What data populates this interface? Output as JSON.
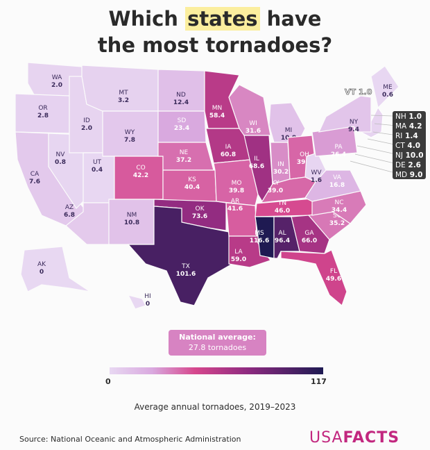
{
  "title": {
    "line1_pre": "Which ",
    "highlight": "states",
    "line1_post": " have",
    "line2": "the most tornadoes?"
  },
  "colors": {
    "scale": [
      "#e8d8f2",
      "#d9a9df",
      "#d6478d",
      "#8d2a80",
      "#1e1a52"
    ],
    "highlight": "#fbee9e",
    "callout_bg": "#3b3b3b",
    "average_box": "#d783c2",
    "logo": "#c2277f"
  },
  "chart_data": {
    "type": "choropleth",
    "title": "Which states have the most tornadoes?",
    "legend_title": "Average annual tornadoes, 2019–2023",
    "scale_range": [
      0,
      117
    ],
    "states": [
      {
        "code": "WA",
        "value": "2.0"
      },
      {
        "code": "OR",
        "value": "2.8"
      },
      {
        "code": "CA",
        "value": "7.6"
      },
      {
        "code": "NV",
        "value": "0.8"
      },
      {
        "code": "ID",
        "value": "2.0"
      },
      {
        "code": "MT",
        "value": "3.2"
      },
      {
        "code": "WY",
        "value": "7.8"
      },
      {
        "code": "UT",
        "value": "0.4"
      },
      {
        "code": "AZ",
        "value": "6.8"
      },
      {
        "code": "CO",
        "value": "42.2"
      },
      {
        "code": "NM",
        "value": "10.8"
      },
      {
        "code": "ND",
        "value": "12.4"
      },
      {
        "code": "SD",
        "value": "23.4"
      },
      {
        "code": "NE",
        "value": "37.2"
      },
      {
        "code": "KS",
        "value": "40.4"
      },
      {
        "code": "OK",
        "value": "73.6"
      },
      {
        "code": "TX",
        "value": "101.6"
      },
      {
        "code": "MN",
        "value": "58.4"
      },
      {
        "code": "IA",
        "value": "60.8"
      },
      {
        "code": "MO",
        "value": "39.8"
      },
      {
        "code": "AR",
        "value": "41.6"
      },
      {
        "code": "LA",
        "value": "59.0"
      },
      {
        "code": "WI",
        "value": "31.6"
      },
      {
        "code": "IL",
        "value": "68.6"
      },
      {
        "code": "MI",
        "value": "10.8"
      },
      {
        "code": "IN",
        "value": "30.2"
      },
      {
        "code": "OH",
        "value": "39.4"
      },
      {
        "code": "KY",
        "value": "39.0"
      },
      {
        "code": "TN",
        "value": "46.0"
      },
      {
        "code": "MS",
        "value": "116.6"
      },
      {
        "code": "AL",
        "value": "96.4"
      },
      {
        "code": "GA",
        "value": "66.0"
      },
      {
        "code": "FL",
        "value": "49.6"
      },
      {
        "code": "SC",
        "value": "35.2"
      },
      {
        "code": "NC",
        "value": "34.4"
      },
      {
        "code": "VA",
        "value": "16.8"
      },
      {
        "code": "WV",
        "value": "1.6"
      },
      {
        "code": "PA",
        "value": "26.4"
      },
      {
        "code": "NY",
        "value": "9.4"
      },
      {
        "code": "ME",
        "value": "0.6"
      },
      {
        "code": "AK",
        "value": "0"
      },
      {
        "code": "HI",
        "value": "0"
      }
    ],
    "small_states": [
      {
        "code": "VT",
        "value": "1.0"
      },
      {
        "code": "NH",
        "value": "1.0"
      },
      {
        "code": "MA",
        "value": "4.2"
      },
      {
        "code": "RI",
        "value": "1.4"
      },
      {
        "code": "CT",
        "value": "4.0"
      },
      {
        "code": "NJ",
        "value": "10.0"
      },
      {
        "code": "DE",
        "value": "2.6"
      },
      {
        "code": "MD",
        "value": "9.0"
      }
    ]
  },
  "legend": {
    "average_title": "National average:",
    "average_value": "27.8 tornadoes",
    "min_label": "0",
    "max_label": "117",
    "caption": "Average annual tornadoes, 2019–2023"
  },
  "footer": {
    "source": "Source: National Oceanic and Atmospheric Administration",
    "logo_light": "USA",
    "logo_bold": "FACTS"
  }
}
